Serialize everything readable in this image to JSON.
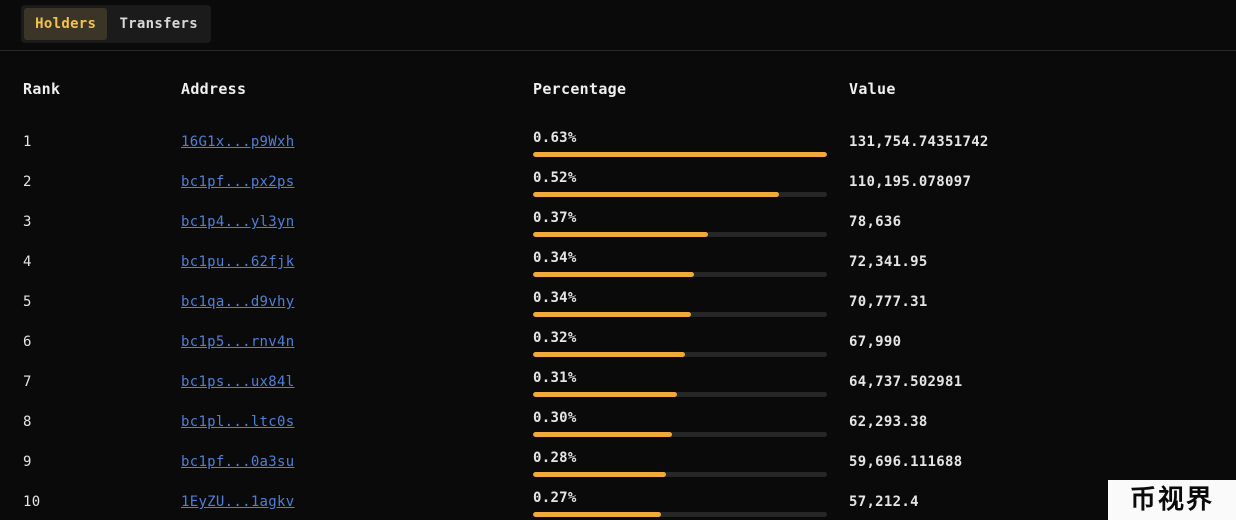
{
  "tabs": [
    {
      "label": "Holders",
      "active": true
    },
    {
      "label": "Transfers",
      "active": false
    }
  ],
  "table": {
    "headers": {
      "rank": "Rank",
      "address": "Address",
      "percentage": "Percentage",
      "value": "Value"
    },
    "rows": [
      {
        "rank": "1",
        "address": "16G1x...p9Wxh",
        "percentage": "0.63%",
        "fill": 1.0,
        "value": "131,754.74351742"
      },
      {
        "rank": "2",
        "address": "bc1pf...px2ps",
        "percentage": "0.52%",
        "fill": 0.836,
        "value": "110,195.078097"
      },
      {
        "rank": "3",
        "address": "bc1p4...yl3yn",
        "percentage": "0.37%",
        "fill": 0.595,
        "value": "78,636"
      },
      {
        "rank": "4",
        "address": "bc1pu...62fjk",
        "percentage": "0.34%",
        "fill": 0.548,
        "value": "72,341.95"
      },
      {
        "rank": "5",
        "address": "bc1qa...d9vhy",
        "percentage": "0.34%",
        "fill": 0.537,
        "value": "70,777.31"
      },
      {
        "rank": "6",
        "address": "bc1p5...rnv4n",
        "percentage": "0.32%",
        "fill": 0.516,
        "value": "67,990"
      },
      {
        "rank": "7",
        "address": "bc1ps...ux84l",
        "percentage": "0.31%",
        "fill": 0.491,
        "value": "64,737.502981"
      },
      {
        "rank": "8",
        "address": "bc1pl...ltc0s",
        "percentage": "0.30%",
        "fill": 0.473,
        "value": "62,293.38"
      },
      {
        "rank": "9",
        "address": "bc1pf...0a3su",
        "percentage": "0.28%",
        "fill": 0.453,
        "value": "59,696.111688"
      },
      {
        "rank": "10",
        "address": "1EyZU...1agkv",
        "percentage": "0.27%",
        "fill": 0.434,
        "value": "57,212.4"
      }
    ]
  },
  "watermark": {
    "text": "币视界"
  },
  "colors": {
    "accent": "#f2c14e",
    "bar": "#f0aa3c",
    "link": "#4f7fd6",
    "background": "#0b0a0a"
  }
}
